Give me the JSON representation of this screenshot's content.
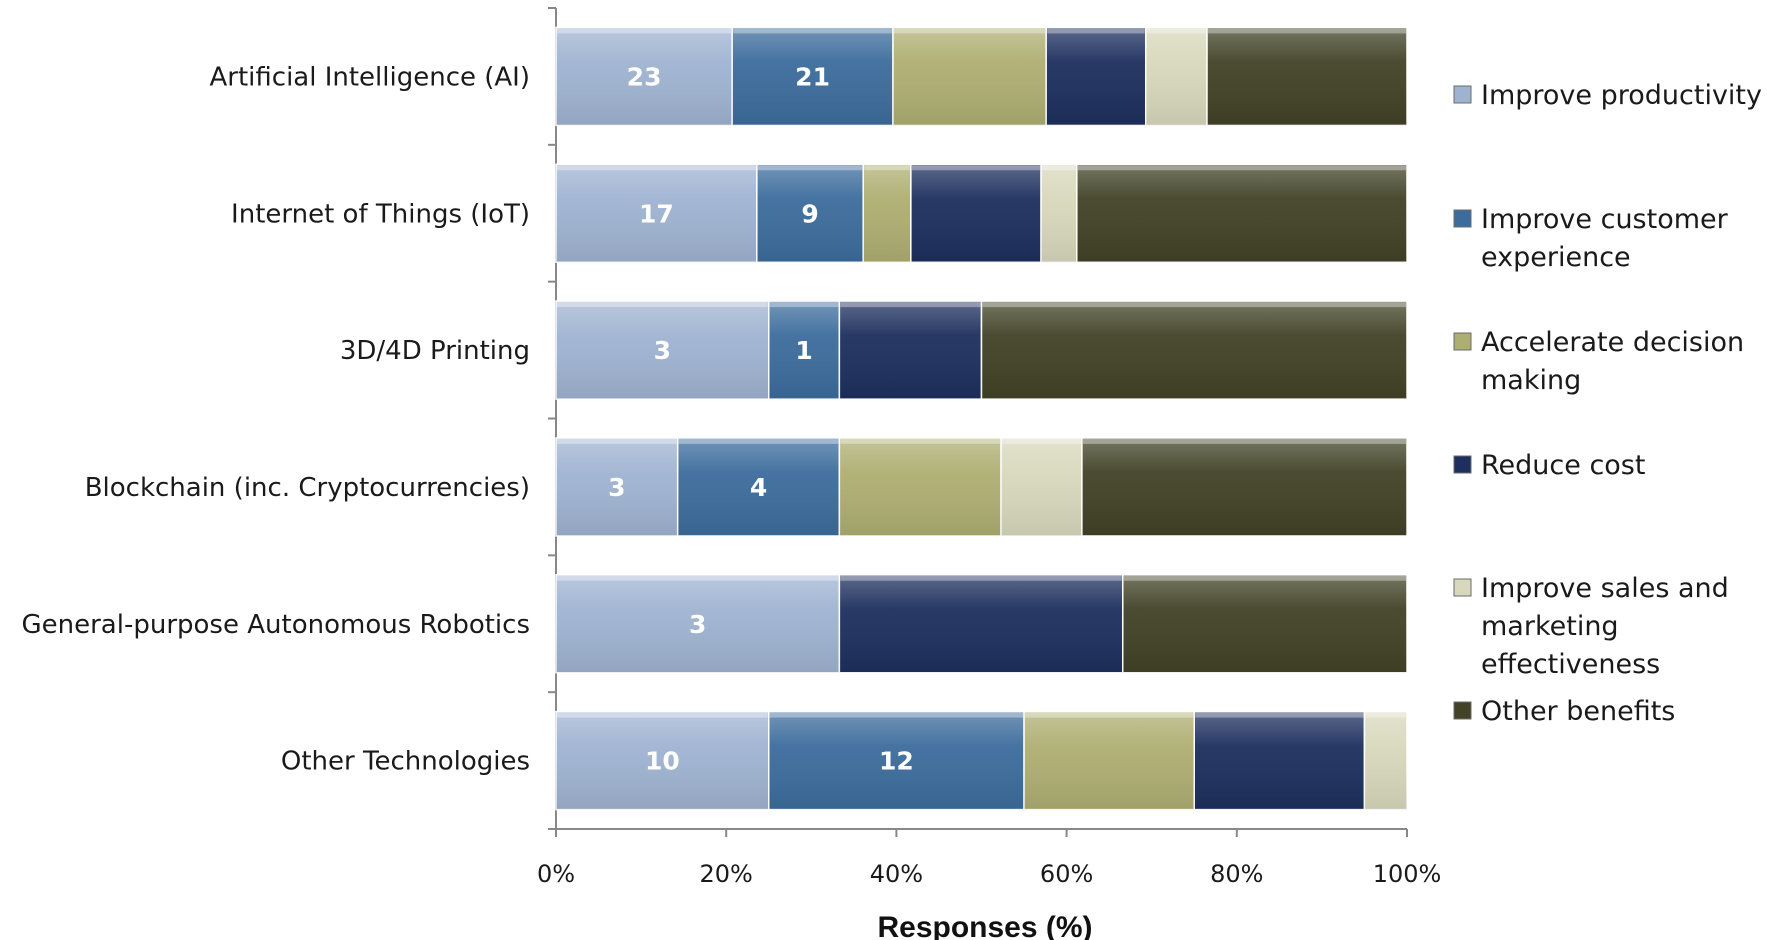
{
  "chart_data": {
    "type": "bar",
    "orientation": "horizontal",
    "stacked": "percent",
    "categories": [
      "Artificial Intelligence (AI)",
      "Internet of Things (IoT)",
      "3D/4D Printing",
      "Blockchain (inc. Cryptocurrencies)",
      "General-purpose Autonomous Robotics",
      "Other Technologies"
    ],
    "series": [
      {
        "name": "Improve productivity",
        "color": "#9fb3d1",
        "values": [
          20.7,
          23.6,
          25.0,
          14.3,
          33.3,
          25.0
        ],
        "labels": [
          "23",
          "17",
          "3",
          "3",
          "3",
          "10"
        ]
      },
      {
        "name": "Improve customer experience",
        "color": "#3c6c9c",
        "values": [
          18.9,
          12.5,
          8.3,
          19.0,
          0,
          30.0
        ],
        "labels": [
          "21",
          "9",
          "1",
          "4",
          "",
          "12"
        ]
      },
      {
        "name": "Accelerate decision making",
        "color": "#aeae72",
        "values": [
          18.0,
          5.6,
          0,
          19.0,
          0,
          20.0
        ],
        "labels": [
          "",
          "",
          "",
          "",
          "",
          ""
        ]
      },
      {
        "name": "Reduce cost",
        "color": "#1d2f5e",
        "values": [
          11.7,
          15.3,
          16.7,
          0,
          33.3,
          20.0
        ],
        "labels": [
          "",
          "",
          "",
          "",
          "",
          ""
        ]
      },
      {
        "name": "Improve sales and marketing effectiveness",
        "color": "#d8d8bc",
        "values": [
          7.2,
          4.2,
          0,
          9.5,
          0,
          5.0
        ],
        "labels": [
          "",
          "",
          "",
          "",
          "",
          ""
        ]
      },
      {
        "name": "Other benefits",
        "color": "#414226",
        "values": [
          23.5,
          38.8,
          50.0,
          38.2,
          33.4,
          0
        ],
        "labels": [
          "",
          "",
          "",
          "",
          "",
          ""
        ]
      }
    ],
    "xlabel": "Responses (%)",
    "ylabel": "",
    "xlim": [
      0,
      100
    ],
    "x_ticks": [
      "0%",
      "20%",
      "40%",
      "60%",
      "80%",
      "100%"
    ],
    "legend_position": "right",
    "grid": false
  }
}
